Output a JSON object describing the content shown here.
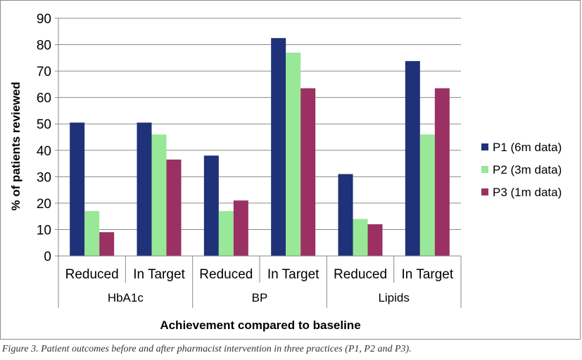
{
  "chart_data": {
    "type": "bar",
    "ylabel": "% of patients reviewed",
    "xlabel": "Achievement compared to baseline",
    "ylim": [
      0,
      90
    ],
    "yticks": [
      0,
      10,
      20,
      30,
      40,
      50,
      60,
      70,
      80,
      90
    ],
    "groups": [
      "HbA1c",
      "BP",
      "Lipids"
    ],
    "categories": [
      "Reduced",
      "In Target",
      "Reduced",
      "In Target",
      "Reduced",
      "In Target"
    ],
    "series": [
      {
        "name": "P1 (6m data)",
        "color": "#1f3178",
        "values": [
          50.5,
          50.5,
          38,
          82.5,
          31,
          73.8
        ]
      },
      {
        "name": "P2 (3m data)",
        "color": "#98e898",
        "values": [
          17,
          46,
          17,
          77,
          14,
          46
        ]
      },
      {
        "name": "P3 (1m data)",
        "color": "#9a3162",
        "values": [
          9,
          36.5,
          21,
          63.5,
          12,
          63.5
        ]
      }
    ],
    "grid": true,
    "legend_position": "right"
  },
  "caption": "Figure 3. Patient outcomes before and after pharmacist intervention in three practices (P1, P2 and P3)."
}
